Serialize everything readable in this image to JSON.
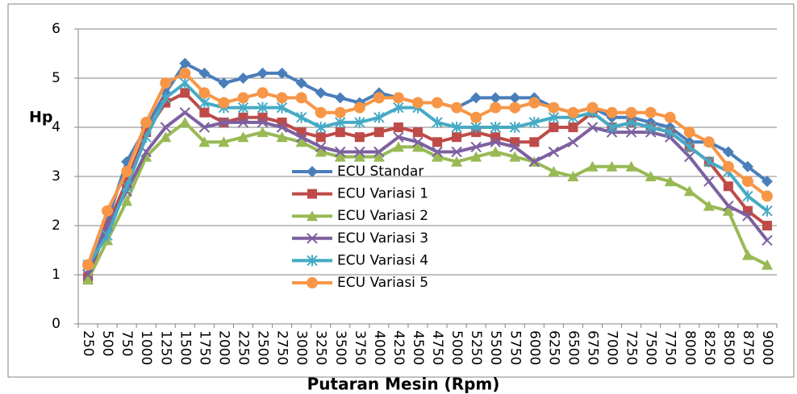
{
  "chart_data": {
    "type": "line",
    "y_label": "Hp",
    "x_label": "Putaran Mesin (Rpm)",
    "categories": [
      "250",
      "500",
      "750",
      "1000",
      "1250",
      "1500",
      "1750",
      "2000",
      "2250",
      "2500",
      "2750",
      "3000",
      "3250",
      "3500",
      "3750",
      "4000",
      "4250",
      "4500",
      "4750",
      "5000",
      "5250",
      "5500",
      "5750",
      "6000",
      "6250",
      "6500",
      "6750",
      "7000",
      "7250",
      "7500",
      "7750",
      "8000",
      "8250",
      "8500",
      "8750",
      "9000"
    ],
    "ylim": [
      0,
      6
    ],
    "yticks": [
      0,
      1,
      2,
      3,
      4,
      5,
      6
    ],
    "grid": true,
    "legend": "center",
    "series": [
      {
        "name": "ECU Standar",
        "color": "#4a7ebb",
        "marker": "diamond",
        "values": [
          1.0,
          2.1,
          3.3,
          4.0,
          4.7,
          5.3,
          5.1,
          4.9,
          5.0,
          5.1,
          5.1,
          4.9,
          4.7,
          4.6,
          4.5,
          4.7,
          4.6,
          4.5,
          4.5,
          4.4,
          4.6,
          4.6,
          4.6,
          4.6,
          4.4,
          4.3,
          4.4,
          4.2,
          4.2,
          4.1,
          4.0,
          3.7,
          3.7,
          3.5,
          3.2,
          2.9
        ]
      },
      {
        "name": "ECU Variasi 1",
        "color": "#be4b48",
        "marker": "square",
        "values": [
          0.95,
          2.0,
          2.9,
          3.9,
          4.5,
          4.7,
          4.3,
          4.1,
          4.2,
          4.2,
          4.1,
          3.9,
          3.8,
          3.9,
          3.8,
          3.9,
          4.0,
          3.9,
          3.7,
          3.8,
          3.9,
          3.8,
          3.7,
          3.7,
          4.0,
          4.0,
          4.3,
          4.0,
          4.1,
          4.0,
          3.9,
          3.6,
          3.3,
          2.8,
          2.3,
          2.0
        ]
      },
      {
        "name": "ECU Variasi 2",
        "color": "#98b954",
        "marker": "triangle",
        "values": [
          0.9,
          1.7,
          2.5,
          3.4,
          3.8,
          4.1,
          3.7,
          3.7,
          3.8,
          3.9,
          3.8,
          3.7,
          3.5,
          3.4,
          3.4,
          3.4,
          3.6,
          3.6,
          3.4,
          3.3,
          3.4,
          3.5,
          3.4,
          3.3,
          3.1,
          3.0,
          3.2,
          3.2,
          3.2,
          3.0,
          2.9,
          2.7,
          2.4,
          2.3,
          1.4,
          1.2
        ]
      },
      {
        "name": "ECU Variasi 3",
        "color": "#7d60a0",
        "marker": "x",
        "values": [
          1.0,
          2.0,
          2.7,
          3.5,
          4.0,
          4.3,
          4.0,
          4.1,
          4.1,
          4.1,
          4.0,
          3.8,
          3.6,
          3.5,
          3.5,
          3.5,
          3.8,
          3.7,
          3.5,
          3.5,
          3.6,
          3.7,
          3.6,
          3.3,
          3.5,
          3.7,
          4.0,
          3.9,
          3.9,
          3.9,
          3.8,
          3.4,
          2.9,
          2.4,
          2.2,
          1.7
        ]
      },
      {
        "name": "ECU Variasi 4",
        "color": "#46aac5",
        "marker": "star",
        "values": [
          1.2,
          1.8,
          2.8,
          3.8,
          4.6,
          4.9,
          4.5,
          4.4,
          4.4,
          4.4,
          4.4,
          4.2,
          4.0,
          4.1,
          4.1,
          4.2,
          4.4,
          4.4,
          4.1,
          4.0,
          4.0,
          4.0,
          4.0,
          4.1,
          4.2,
          4.2,
          4.3,
          4.0,
          4.1,
          4.0,
          3.9,
          3.6,
          3.3,
          3.1,
          2.6,
          2.3
        ]
      },
      {
        "name": "ECU Variasi 5",
        "color": "#f79646",
        "marker": "circle",
        "values": [
          1.2,
          2.3,
          3.1,
          4.1,
          4.9,
          5.1,
          4.7,
          4.5,
          4.6,
          4.7,
          4.6,
          4.6,
          4.3,
          4.3,
          4.4,
          4.6,
          4.6,
          4.5,
          4.5,
          4.4,
          4.2,
          4.4,
          4.4,
          4.5,
          4.4,
          4.3,
          4.4,
          4.3,
          4.3,
          4.3,
          4.2,
          3.9,
          3.7,
          3.2,
          2.9,
          2.6
        ]
      }
    ]
  }
}
